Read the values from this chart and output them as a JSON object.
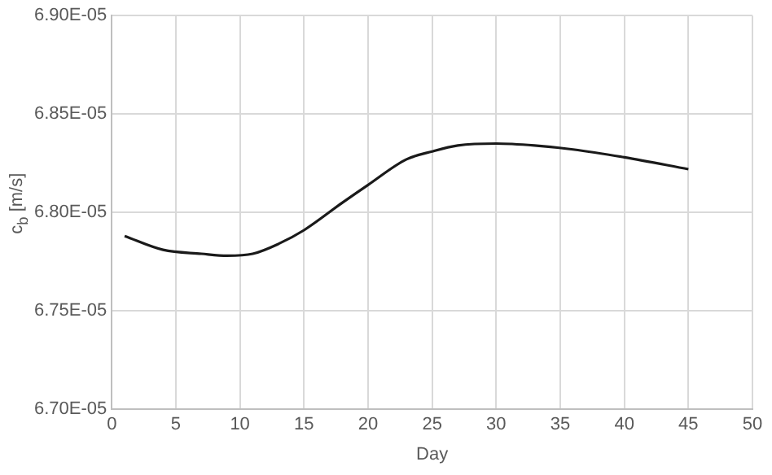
{
  "chart_data": {
    "type": "line",
    "xlabel": "Day",
    "ylabel": "c$_{b}$ [m/s]",
    "x": [
      1,
      4,
      7,
      9,
      11,
      13,
      15,
      18,
      20,
      23,
      25,
      27,
      30,
      33,
      36,
      40,
      45
    ],
    "series": [
      {
        "color": "#1a1a1a",
        "values": [
          6.788e-05,
          6.781e-05,
          6.779e-05,
          6.778e-05,
          6.779e-05,
          6.784e-05,
          6.791e-05,
          6.805e-05,
          6.814e-05,
          6.827e-05,
          6.831e-05,
          6.834e-05,
          6.835e-05,
          6.834e-05,
          6.832e-05,
          6.828e-05,
          6.822e-05
        ]
      }
    ],
    "xlim": [
      0,
      50
    ],
    "xticks": [
      0,
      5,
      10,
      15,
      20,
      25,
      30,
      35,
      40,
      45,
      50
    ],
    "ylim": [
      6.7e-05,
      6.9e-05
    ],
    "yticks": [
      {
        "value": 6.7e-05,
        "label": "6.70E-05"
      },
      {
        "value": 6.75e-05,
        "label": "6.75E-05"
      },
      {
        "value": 6.8e-05,
        "label": "6.80E-05"
      },
      {
        "value": 6.85e-05,
        "label": "6.85E-05"
      },
      {
        "value": 6.9e-05,
        "label": "6.90E-05"
      }
    ],
    "grid": true,
    "legend": false,
    "marker": "none",
    "line_style": "solid"
  }
}
